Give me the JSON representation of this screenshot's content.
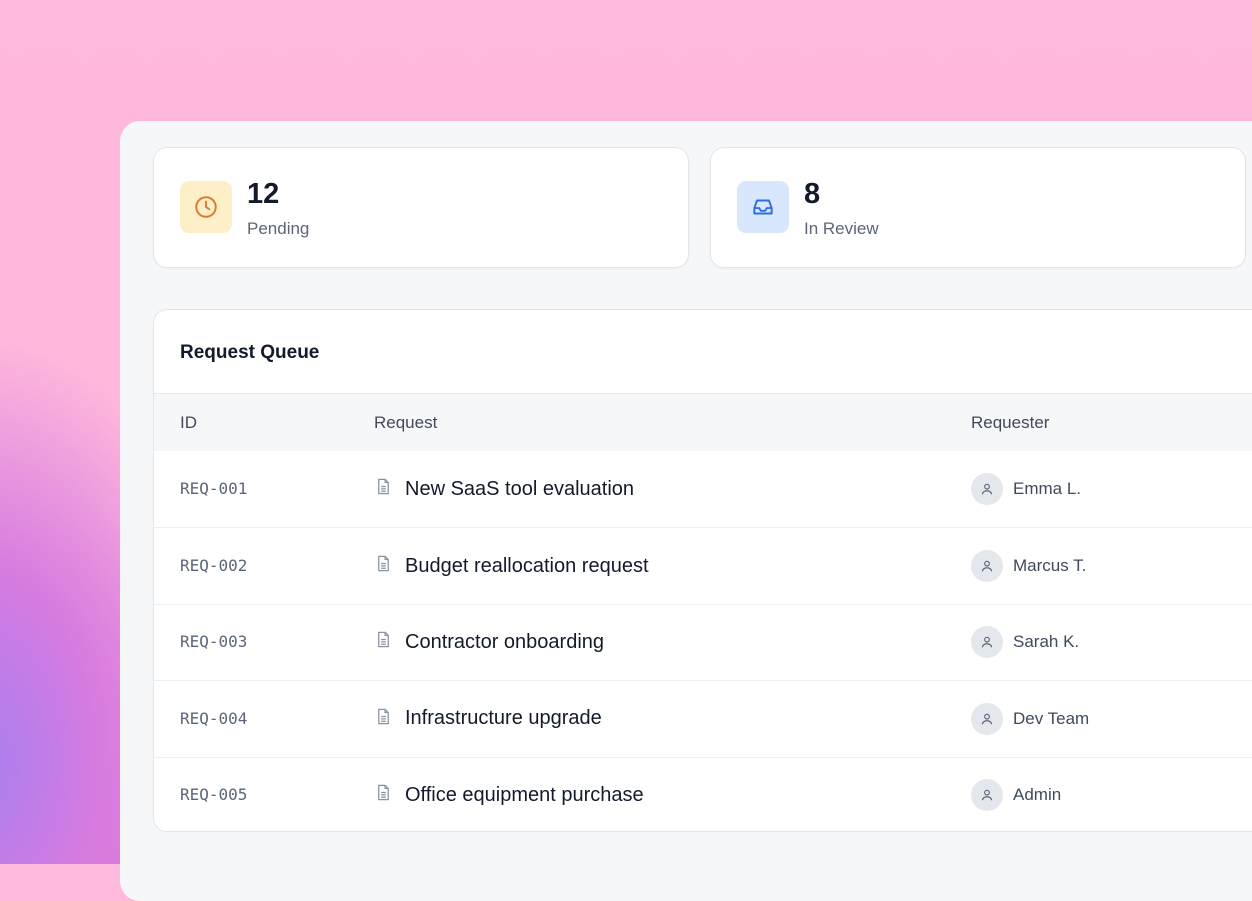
{
  "stats": [
    {
      "value": "12",
      "label": "Pending",
      "icon": "clock-icon",
      "icon_color": "#e07a2a",
      "icon_bg": "#fdefc8"
    },
    {
      "value": "8",
      "label": "In Review",
      "icon": "inbox-icon",
      "icon_color": "#2f6fe4",
      "icon_bg": "#d8e7fc"
    }
  ],
  "queue": {
    "title": "Request Queue",
    "columns": [
      "ID",
      "Request",
      "Requester"
    ],
    "rows": [
      {
        "id": "REQ-001",
        "request": "New SaaS tool evaluation",
        "requester": "Emma L."
      },
      {
        "id": "REQ-002",
        "request": "Budget reallocation request",
        "requester": "Marcus T."
      },
      {
        "id": "REQ-003",
        "request": "Contractor onboarding",
        "requester": "Sarah K."
      },
      {
        "id": "REQ-004",
        "request": "Infrastructure upgrade",
        "requester": "Dev Team"
      },
      {
        "id": "REQ-005",
        "request": "Office equipment purchase",
        "requester": "Admin"
      }
    ]
  }
}
